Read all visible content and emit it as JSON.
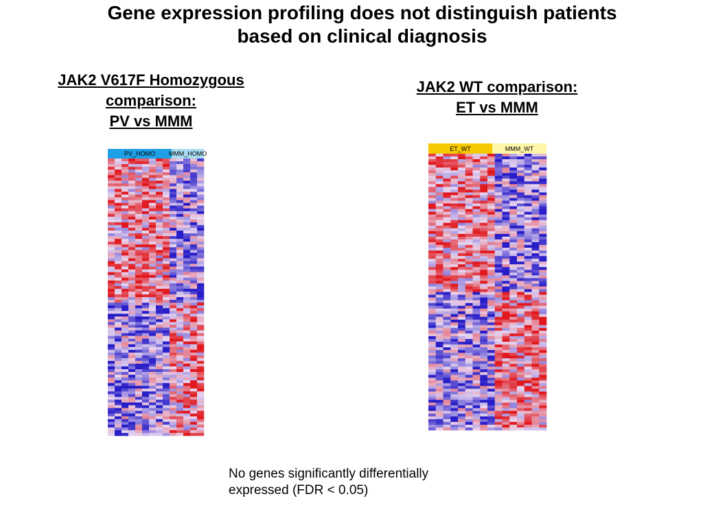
{
  "title": [
    "Gene expression profiling does not distinguish patients",
    "based on clinical diagnosis"
  ],
  "panels": [
    {
      "heading": [
        "JAK2 V617F Homozygous",
        "comparison:",
        "PV vs MMM"
      ],
      "groups": [
        "PV_HOMO",
        "MMM_HOMO"
      ]
    },
    {
      "heading": [
        "JAK2 WT comparison:",
        "ET vs MMM"
      ],
      "groups": [
        "ET_WT",
        "MMM_WT"
      ]
    }
  ],
  "note": "No genes significantly differentially expressed (FDR < 0.05)"
}
